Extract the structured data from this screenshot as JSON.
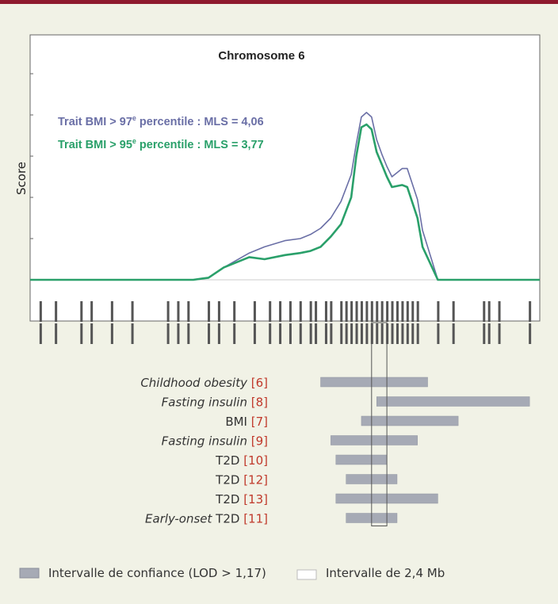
{
  "chart_data": {
    "type": "line",
    "title": "Chromosome 6",
    "ylabel": "Score",
    "xlim": [
      0,
      100
    ],
    "ylim": [
      0,
      5
    ],
    "grid": false,
    "series": [
      {
        "name": "Trait BMI > 97e percentile : MLS = 4,06",
        "label_prefix": "Trait BMI > 97",
        "label_sup": "e",
        "label_suffix": " percentile : MLS = 4,06",
        "color": "#6a6fa6",
        "x": [
          0,
          32,
          35,
          38,
          43,
          46,
          50,
          53,
          55,
          57,
          59,
          61,
          63,
          64,
          65,
          66,
          67,
          68,
          69,
          70,
          71,
          73,
          74,
          76,
          77,
          80,
          100
        ],
        "y": [
          0,
          0,
          0.05,
          0.3,
          0.65,
          0.8,
          0.95,
          1.0,
          1.1,
          1.25,
          1.5,
          1.9,
          2.55,
          3.3,
          3.95,
          4.06,
          3.95,
          3.4,
          3.05,
          2.75,
          2.5,
          2.7,
          2.7,
          1.95,
          1.2,
          0,
          0
        ]
      },
      {
        "name": "Trait BMI > 95e percentile : MLS = 3,77",
        "label_prefix": "Trait BMI > 95",
        "label_sup": "e",
        "label_suffix": " percentile : MLS = 3,77",
        "color": "#2aa06a",
        "x": [
          0,
          32,
          35,
          38,
          43,
          46,
          50,
          53,
          55,
          57,
          59,
          61,
          63,
          64,
          65,
          66,
          67,
          68,
          69,
          70,
          71,
          73,
          74,
          76,
          77,
          80,
          100
        ],
        "y": [
          0,
          0,
          0.05,
          0.3,
          0.55,
          0.5,
          0.6,
          0.65,
          0.7,
          0.8,
          1.05,
          1.35,
          2.0,
          3.0,
          3.7,
          3.77,
          3.65,
          3.1,
          2.8,
          2.5,
          2.25,
          2.3,
          2.25,
          1.5,
          0.8,
          0,
          0
        ]
      }
    ],
    "marker_positions": [
      2,
      5,
      10,
      12,
      16,
      20,
      27,
      29,
      31,
      35,
      37,
      40,
      44,
      47,
      49,
      51,
      53,
      55,
      56,
      58,
      59,
      61,
      62,
      63,
      64,
      65,
      66,
      67,
      68,
      69,
      70,
      71,
      72,
      73,
      74,
      75,
      76,
      80,
      83,
      89,
      90,
      92,
      98
    ],
    "intervals": [
      {
        "label_prefix": "",
        "label_italic": "Childhood obesity",
        "label_suffix": "",
        "ref": "[6]",
        "start": 57,
        "end": 78
      },
      {
        "label_prefix": "",
        "label_italic": "Fasting insulin",
        "label_suffix": "",
        "ref": "[8]",
        "start": 68,
        "end": 98
      },
      {
        "label_prefix": "BMI",
        "label_italic": "",
        "label_suffix": "",
        "ref": "[7]",
        "start": 65,
        "end": 84
      },
      {
        "label_prefix": "",
        "label_italic": "Fasting insulin",
        "label_suffix": "",
        "ref": "[9]",
        "start": 59,
        "end": 76
      },
      {
        "label_prefix": "T2D",
        "label_italic": "",
        "label_suffix": "",
        "ref": "[10]",
        "start": 60,
        "end": 70
      },
      {
        "label_prefix": "T2D",
        "label_italic": "",
        "label_suffix": "",
        "ref": "[12]",
        "start": 62,
        "end": 72
      },
      {
        "label_prefix": "T2D",
        "label_italic": "",
        "label_suffix": "",
        "ref": "[13]",
        "start": 60,
        "end": 80
      },
      {
        "label_prefix": "",
        "label_italic": "Early-onset",
        "label_suffix": " T2D",
        "ref": "[11]",
        "start": 62,
        "end": 72
      }
    ],
    "window_2_4Mb": {
      "start": 67,
      "end": 70
    },
    "legend": [
      {
        "swatch": "filled",
        "color": "#a6aab5",
        "label": "Intervalle de confiance (LOD > 1,17)"
      },
      {
        "swatch": "outline",
        "color": "#ffffff",
        "label": "Intervalle de 2,4 Mb"
      }
    ]
  }
}
